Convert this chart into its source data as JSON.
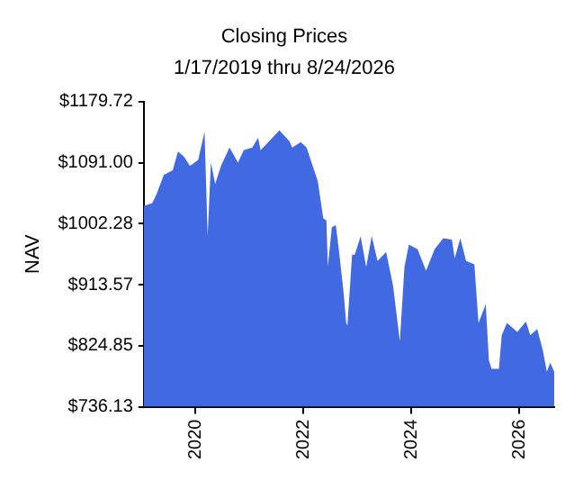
{
  "chart_data": {
    "type": "area",
    "title": "Closing Prices",
    "subtitle": "1/17/2019 thru 8/24/2026",
    "ylabel": "NAV",
    "xlim": [
      "2019-01-17",
      "2026-08-24"
    ],
    "xticks": [
      {
        "value": "2020",
        "label": "2020"
      },
      {
        "value": "2022",
        "label": "2022"
      },
      {
        "value": "2024",
        "label": "2024"
      },
      {
        "value": "2026",
        "label": "2026"
      }
    ],
    "ylim": [
      736.13,
      1179.72
    ],
    "yticks": [
      {
        "value": 736.13,
        "label": "$736.13"
      },
      {
        "value": 824.85,
        "label": "$824.85"
      },
      {
        "value": 913.57,
        "label": "$913.57"
      },
      {
        "value": 1002.28,
        "label": "$1002.28"
      },
      {
        "value": 1091.0,
        "label": "$1091.00"
      },
      {
        "value": 1179.72,
        "label": "$1179.72"
      }
    ],
    "x": [
      "2019-01-17",
      "2019-03-15",
      "2019-04-15",
      "2019-06-01",
      "2019-08-01",
      "2019-09-05",
      "2019-10-15",
      "2019-11-25",
      "2020-01-20",
      "2020-03-03",
      "2020-03-24",
      "2020-04-15",
      "2020-05-14",
      "2020-06-22",
      "2020-08-19",
      "2020-10-15",
      "2020-11-23",
      "2021-01-20",
      "2021-02-28",
      "2021-03-17",
      "2021-05-14",
      "2021-07-22",
      "2021-09-28",
      "2021-10-17",
      "2021-12-14",
      "2022-01-22",
      "2022-04-08",
      "2022-05-15",
      "2022-06-05",
      "2022-06-15",
      "2022-07-12",
      "2022-08-08",
      "2022-08-28",
      "2022-09-29",
      "2022-10-17",
      "2022-10-25",
      "2022-11-26",
      "2022-12-14",
      "2023-01-23",
      "2023-03-01",
      "2023-04-08",
      "2023-05-17",
      "2023-07-14",
      "2023-08-30",
      "2023-10-15",
      "2023-11-15",
      "2023-12-15",
      "2024-02-12",
      "2024-04-09",
      "2024-06-06",
      "2024-08-03",
      "2024-10-01",
      "2024-10-20",
      "2024-11-27",
      "2025-01-05",
      "2025-03-02",
      "2025-03-30",
      "2025-05-18",
      "2025-06-08",
      "2025-06-26",
      "2025-08-15",
      "2025-09-03",
      "2025-10-08",
      "2025-12-17",
      "2026-02-14",
      "2026-03-15",
      "2026-05-01",
      "2026-06-08",
      "2026-07-05",
      "2026-07-28",
      "2026-08-24"
    ],
    "series": [
      {
        "color": "#4169e1",
        "values": [
          1028,
          1032,
          1046,
          1073,
          1080,
          1107,
          1100,
          1086,
          1095,
          1136,
          984,
          1091,
          1060,
          1086,
          1113,
          1091,
          1109,
          1113,
          1127,
          1109,
          1122,
          1138,
          1122,
          1113,
          1121,
          1113,
          1064,
          1010,
          1007,
          940,
          997,
          1000,
          965,
          903,
          858,
          854,
          957,
          957,
          984,
          939,
          984,
          948,
          961,
          912,
          831,
          939,
          972,
          965,
          934,
          965,
          981,
          979,
          952,
          981,
          948,
          943,
          858,
          885,
          804,
          791,
          791,
          840,
          858,
          845,
          860,
          840,
          849,
          818,
          787,
          800,
          787
        ]
      }
    ]
  }
}
